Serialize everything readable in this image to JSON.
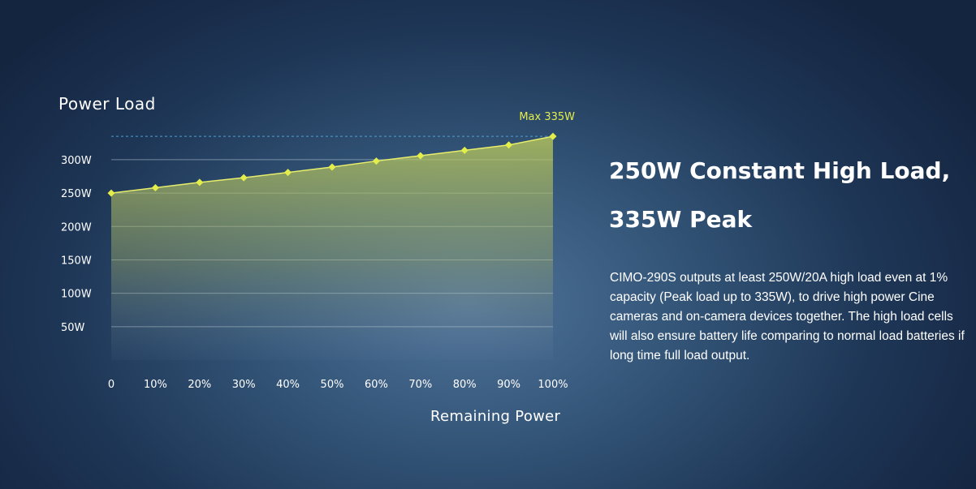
{
  "chart_data": {
    "type": "area",
    "title": "Power Load",
    "xlabel": "Remaining Power",
    "ylabel": "",
    "categories": [
      "0",
      "10%",
      "20%",
      "30%",
      "40%",
      "50%",
      "60%",
      "70%",
      "80%",
      "90%",
      "100%"
    ],
    "x": [
      0,
      10,
      20,
      30,
      40,
      50,
      60,
      70,
      80,
      90,
      100
    ],
    "values": [
      250,
      258,
      266,
      273,
      281,
      289,
      298,
      306,
      314,
      322,
      335
    ],
    "y_ticks": [
      50,
      100,
      150,
      200,
      250,
      300
    ],
    "y_tick_labels": [
      "50W",
      "100W",
      "150W",
      "200W",
      "250W",
      "300W"
    ],
    "ylim": [
      0,
      335
    ],
    "grid": "horizontal",
    "annotation": {
      "text": "Max 335W",
      "value": 335
    },
    "colors": {
      "line": "#e7ee6c",
      "marker": "#e4ee4a",
      "annotation": "#e4ee4a",
      "fill_top": "#b9c85a"
    }
  },
  "headline": {
    "line1": "250W Constant High Load,",
    "line2": "335W Peak"
  },
  "description": "CIMO-290S outputs at least 250W/20A high load even at 1% capacity (Peak load up to 335W), to drive high power Cine cameras and on-camera devices together. The high load cells will also ensure battery life comparing to normal load batteries if long time full load output."
}
